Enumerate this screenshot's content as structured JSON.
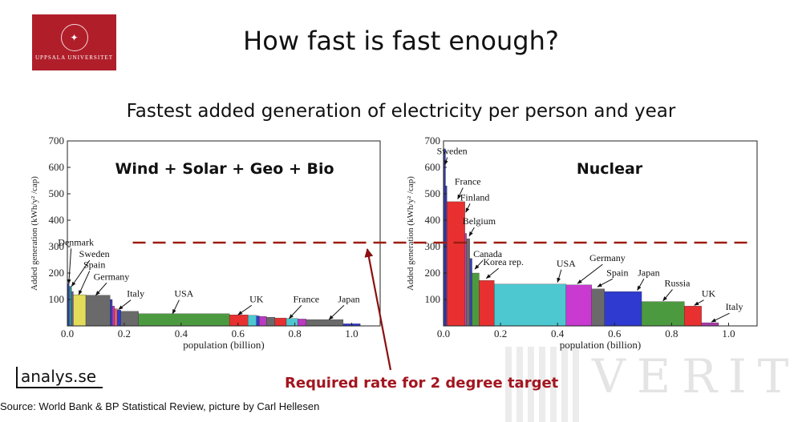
{
  "header": {
    "logo_text": "UPPSALA UNIVERSITET",
    "title": "How fast is fast enough?",
    "subtitle": "Fastest added generation of electricity per person and year"
  },
  "footer": {
    "brand": "analys.se",
    "source": "Source: World Bank & BP Statistical Review, picture by Carl Hellesen",
    "required_rate": "Required rate for 2 degree target"
  },
  "target_value": 315,
  "colors": {
    "target_line": "#9c1c10",
    "arrow": "#8c1010",
    "logo_bg": "#b01e2a"
  },
  "chart_data": [
    {
      "type": "bar",
      "title": "Wind + Solar + Geo + Bio",
      "xlabel": "population (billion)",
      "ylabel": "Added generation (kWh/y² /cap)",
      "xlim": [
        0,
        1.1
      ],
      "ylim": [
        0,
        700
      ],
      "xticks": [
        "0.0",
        "0.2",
        "0.4",
        "0.6",
        "0.8",
        "1.0"
      ],
      "yticks": [
        "100",
        "200",
        "300",
        "400",
        "500",
        "600",
        "700"
      ],
      "grid": false,
      "bars": [
        {
          "x0": 0.0,
          "x1": 0.006,
          "value": 160,
          "color": "#3a3fb0"
        },
        {
          "x0": 0.006,
          "x1": 0.015,
          "value": 150,
          "color": "#2c8c8c"
        },
        {
          "x0": 0.015,
          "x1": 0.021,
          "value": 130,
          "color": "#6e5a9c"
        },
        {
          "x0": 0.021,
          "x1": 0.065,
          "value": 118,
          "color": "#e2dc5a"
        },
        {
          "x0": 0.065,
          "x1": 0.15,
          "value": 116,
          "color": "#6a6a6a"
        },
        {
          "x0": 0.15,
          "x1": 0.158,
          "value": 100,
          "color": "#3a3fb0"
        },
        {
          "x0": 0.158,
          "x1": 0.166,
          "value": 75,
          "color": "#ba3ac0"
        },
        {
          "x0": 0.166,
          "x1": 0.176,
          "value": 65,
          "color": "#e85d5d"
        },
        {
          "x0": 0.176,
          "x1": 0.188,
          "value": 60,
          "color": "#2f3ad0"
        },
        {
          "x0": 0.188,
          "x1": 0.25,
          "value": 55,
          "color": "#6a6a6a"
        },
        {
          "x0": 0.25,
          "x1": 0.57,
          "value": 46,
          "color": "#4c9a40"
        },
        {
          "x0": 0.57,
          "x1": 0.635,
          "value": 42,
          "color": "#e83030"
        },
        {
          "x0": 0.635,
          "x1": 0.665,
          "value": 40,
          "color": "#4dc8d0"
        },
        {
          "x0": 0.665,
          "x1": 0.675,
          "value": 38,
          "color": "#2f3ad0"
        },
        {
          "x0": 0.675,
          "x1": 0.7,
          "value": 36,
          "color": "#ba3ac0"
        },
        {
          "x0": 0.7,
          "x1": 0.73,
          "value": 33,
          "color": "#6a6a6a"
        },
        {
          "x0": 0.73,
          "x1": 0.77,
          "value": 30,
          "color": "#e83030"
        },
        {
          "x0": 0.77,
          "x1": 0.81,
          "value": 28,
          "color": "#4dc8d0"
        },
        {
          "x0": 0.81,
          "x1": 0.84,
          "value": 26,
          "color": "#ba3ac0"
        },
        {
          "x0": 0.84,
          "x1": 0.97,
          "value": 24,
          "color": "#6a6a6a"
        },
        {
          "x0": 0.97,
          "x1": 1.03,
          "value": 8,
          "color": "#2f3ad0"
        }
      ],
      "annotations": [
        {
          "text": "Denmark",
          "x": 0.03,
          "y": 305,
          "tx": 0.005,
          "ty": 160
        },
        {
          "text": "Sweden",
          "x": 0.095,
          "y": 260,
          "tx": 0.015,
          "ty": 150
        },
        {
          "text": "Spain",
          "x": 0.095,
          "y": 220,
          "tx": 0.04,
          "ty": 118
        },
        {
          "text": "Germany",
          "x": 0.155,
          "y": 175,
          "tx": 0.1,
          "ty": 116
        },
        {
          "text": "Italy",
          "x": 0.24,
          "y": 110,
          "tx": 0.18,
          "ty": 62
        },
        {
          "text": "USA",
          "x": 0.41,
          "y": 110,
          "tx": 0.37,
          "ty": 46
        },
        {
          "text": "UK",
          "x": 0.665,
          "y": 90,
          "tx": 0.6,
          "ty": 42
        },
        {
          "text": "France",
          "x": 0.84,
          "y": 90,
          "tx": 0.78,
          "ty": 28
        },
        {
          "text": "Japan",
          "x": 0.99,
          "y": 90,
          "tx": 0.92,
          "ty": 24
        }
      ]
    },
    {
      "type": "bar",
      "title": "Nuclear",
      "xlabel": "population (billion)",
      "ylabel": "Added generation (kWh/y² /cap)",
      "xlim": [
        0,
        1.1
      ],
      "ylim": [
        0,
        700
      ],
      "xticks": [
        "0.0",
        "0.2",
        "0.4",
        "0.6",
        "0.8",
        "1.0"
      ],
      "yticks": [
        "100",
        "200",
        "300",
        "400",
        "500",
        "600",
        "700"
      ],
      "grid": false,
      "bars": [
        {
          "x0": 0.0,
          "x1": 0.007,
          "value": 670,
          "color": "#3a3fb0"
        },
        {
          "x0": 0.007,
          "x1": 0.012,
          "value": 530,
          "color": "#3a3fb0"
        },
        {
          "x0": 0.012,
          "x1": 0.075,
          "value": 470,
          "color": "#e83030"
        },
        {
          "x0": 0.075,
          "x1": 0.081,
          "value": 350,
          "color": "#b04ab8"
        },
        {
          "x0": 0.081,
          "x1": 0.092,
          "value": 330,
          "color": "#6a6a6a"
        },
        {
          "x0": 0.092,
          "x1": 0.1,
          "value": 255,
          "color": "#3a3fb0"
        },
        {
          "x0": 0.1,
          "x1": 0.125,
          "value": 200,
          "color": "#4c9a40"
        },
        {
          "x0": 0.125,
          "x1": 0.178,
          "value": 172,
          "color": "#e83030"
        },
        {
          "x0": 0.178,
          "x1": 0.43,
          "value": 158,
          "color": "#4dc8d0"
        },
        {
          "x0": 0.43,
          "x1": 0.52,
          "value": 155,
          "color": "#c83ad0"
        },
        {
          "x0": 0.52,
          "x1": 0.565,
          "value": 140,
          "color": "#6a6a6a"
        },
        {
          "x0": 0.565,
          "x1": 0.695,
          "value": 130,
          "color": "#2f3ad0"
        },
        {
          "x0": 0.695,
          "x1": 0.845,
          "value": 92,
          "color": "#4c9a40"
        },
        {
          "x0": 0.845,
          "x1": 0.905,
          "value": 75,
          "color": "#e83030"
        },
        {
          "x0": 0.905,
          "x1": 0.965,
          "value": 12,
          "color": "#a83aa8"
        }
      ],
      "annotations": [
        {
          "text": "Sweden",
          "x": 0.03,
          "y": 650,
          "tx": 0.005,
          "ty": 610
        },
        {
          "text": "France",
          "x": 0.085,
          "y": 535,
          "tx": 0.05,
          "ty": 480
        },
        {
          "text": "Finland",
          "x": 0.11,
          "y": 475,
          "tx": 0.078,
          "ty": 430
        },
        {
          "text": "Belgium",
          "x": 0.125,
          "y": 385,
          "tx": 0.09,
          "ty": 340
        },
        {
          "text": "Canada",
          "x": 0.155,
          "y": 260,
          "tx": 0.11,
          "ty": 215
        },
        {
          "text": "Korea rep.",
          "x": 0.21,
          "y": 230,
          "tx": 0.15,
          "ty": 180
        },
        {
          "text": "USA",
          "x": 0.43,
          "y": 225,
          "tx": 0.4,
          "ty": 165
        },
        {
          "text": "Germany",
          "x": 0.575,
          "y": 245,
          "tx": 0.47,
          "ty": 160
        },
        {
          "text": "Spain",
          "x": 0.61,
          "y": 190,
          "tx": 0.54,
          "ty": 148
        },
        {
          "text": "Japan",
          "x": 0.72,
          "y": 190,
          "tx": 0.68,
          "ty": 135
        },
        {
          "text": "Russia",
          "x": 0.82,
          "y": 150,
          "tx": 0.77,
          "ty": 95
        },
        {
          "text": "UK",
          "x": 0.93,
          "y": 110,
          "tx": 0.88,
          "ty": 78
        },
        {
          "text": "Italy",
          "x": 1.02,
          "y": 60,
          "tx": 0.94,
          "ty": 15
        }
      ]
    }
  ]
}
